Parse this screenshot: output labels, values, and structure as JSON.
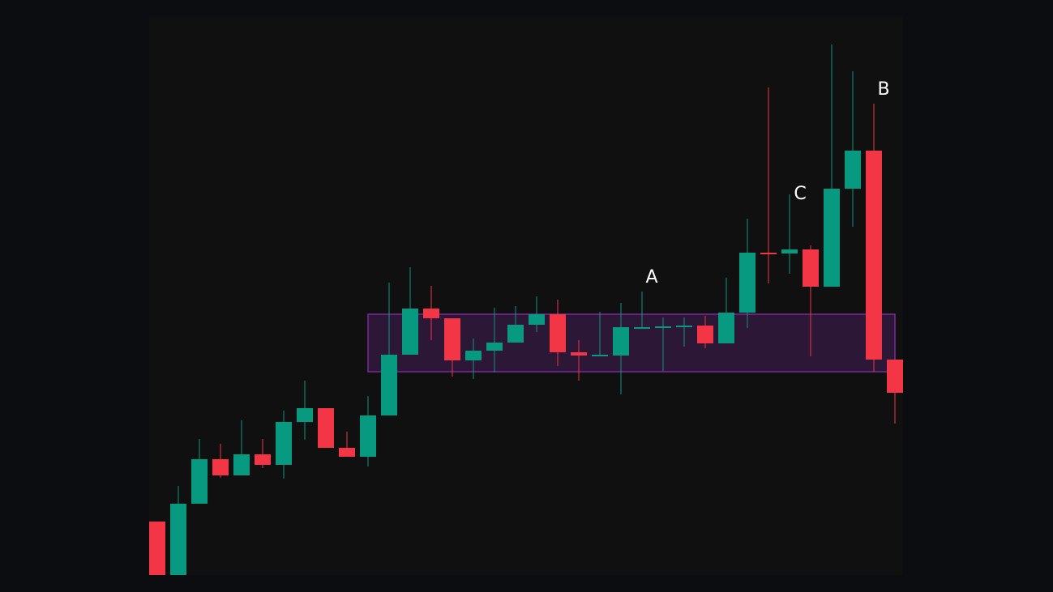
{
  "chart_data": {
    "type": "candlestick",
    "categories": [
      null,
      null,
      null,
      null,
      null,
      null,
      null,
      null,
      null,
      null,
      null,
      null,
      null,
      null,
      null,
      null,
      null,
      null,
      null,
      null,
      null,
      null,
      null,
      null,
      null,
      null,
      null,
      null,
      null,
      null,
      null,
      null,
      null,
      null,
      null,
      null
    ],
    "open": [
      87,
      21,
      109,
      164,
      144,
      170,
      157,
      210,
      227,
      178,
      167,
      218,
      293,
      350,
      338,
      286,
      298,
      308,
      330,
      343,
      296,
      292,
      292,
      326,
      327,
      328,
      329,
      307,
      345,
      419,
      418,
      423,
      377,
      498,
      545,
      287
    ],
    "high": [
      87,
      131,
      189,
      183,
      212,
      189,
      224,
      261,
      227,
      198,
      242,
      382,
      401,
      378,
      338,
      313,
      351,
      353,
      365,
      361,
      311,
      346,
      357,
      371,
      339,
      339,
      341,
      388,
      461,
      623,
      491,
      428,
      676,
      643,
      603,
      287
    ],
    "low": [
      21,
      21,
      109,
      141,
      144,
      153,
      140,
      188,
      178,
      167,
      155,
      218,
      293,
      311,
      266,
      263,
      271,
      308,
      321,
      279,
      261,
      291,
      244,
      326,
      273,
      303,
      301,
      307,
      326,
      381,
      393,
      291,
      377,
      451,
      272,
      208
    ],
    "close": [
      21,
      109,
      164,
      144,
      170,
      157,
      210,
      227,
      178,
      167,
      218,
      293,
      350,
      338,
      286,
      298,
      308,
      330,
      343,
      296,
      292,
      293,
      327,
      327,
      328,
      329,
      307,
      345,
      419,
      417,
      423,
      377,
      498,
      545,
      287,
      246
    ],
    "up_color": "#089981",
    "down_color": "#f23645",
    "ylim": [
      21,
      711
    ],
    "zone": {
      "low": 272,
      "high": 343,
      "from": 10,
      "to": 35,
      "color": "#7b2a9a"
    },
    "annotations": [
      "A",
      "C",
      "B"
    ]
  }
}
